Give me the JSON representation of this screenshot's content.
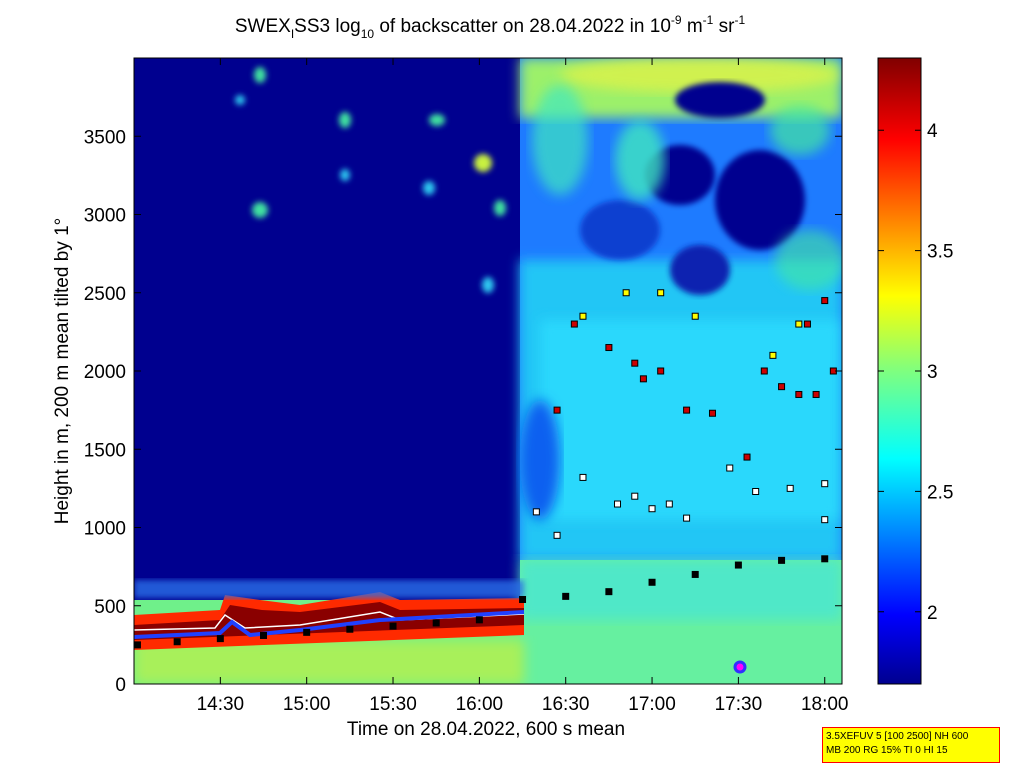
{
  "chart_data": {
    "type": "heatmap",
    "title_parts": {
      "t1": "SWEX",
      "t1_sub": "I",
      "t2": "SS3 log",
      "t2_sub": "10",
      "t3": " of backscatter on 28.04.2022 in 10",
      "t3_sup1": "-9",
      "t4": " m",
      "t4_sup": "-1",
      "t5": " sr",
      "t5_sup": "-1"
    },
    "xlabel": "Time on 28.04.2022, 600 s mean",
    "ylabel": "Height in m, 200 m mean tilted by 1°",
    "x_ticks": [
      "14:30",
      "15:00",
      "15:30",
      "16:00",
      "16:30",
      "17:00",
      "17:30",
      "18:00"
    ],
    "y_ticks": [
      "0",
      "500",
      "1000",
      "1500",
      "2000",
      "2500",
      "3000",
      "3500"
    ],
    "y_tick_values": [
      0,
      500,
      1000,
      1500,
      2000,
      2500,
      3000,
      3500
    ],
    "ylim": [
      0,
      4000
    ],
    "colorbar_ticks": [
      "2",
      "2.5",
      "3",
      "3.5",
      "4"
    ],
    "colorbar_tick_values": [
      2,
      2.5,
      3,
      3.5,
      4
    ],
    "colorbar_range": [
      1.7,
      4.3
    ],
    "colormap": "jet",
    "series": [
      {
        "marker": "black squares",
        "points": [
          [
            14.02,
            250
          ],
          [
            14.25,
            270
          ],
          [
            14.5,
            290
          ],
          [
            14.75,
            310
          ],
          [
            15.0,
            330
          ],
          [
            15.25,
            350
          ],
          [
            15.5,
            370
          ],
          [
            15.75,
            390
          ],
          [
            16.0,
            410
          ],
          [
            16.25,
            540
          ],
          [
            16.5,
            560
          ],
          [
            16.75,
            590
          ],
          [
            17.0,
            650
          ],
          [
            17.25,
            700
          ],
          [
            17.5,
            760
          ],
          [
            17.75,
            790
          ],
          [
            18.0,
            800
          ]
        ]
      },
      {
        "marker": "white squares",
        "points": [
          [
            16.33,
            1100
          ],
          [
            16.45,
            950
          ],
          [
            16.6,
            1320
          ],
          [
            16.8,
            1150
          ],
          [
            16.9,
            1200
          ],
          [
            17.0,
            1120
          ],
          [
            17.1,
            1150
          ],
          [
            17.2,
            1060
          ],
          [
            17.45,
            1380
          ],
          [
            17.6,
            1230
          ],
          [
            17.8,
            1250
          ],
          [
            18.0,
            1280
          ],
          [
            18.0,
            1050
          ]
        ]
      },
      {
        "marker": "red squares",
        "points": [
          [
            16.45,
            1750
          ],
          [
            16.55,
            2300
          ],
          [
            16.75,
            2150
          ],
          [
            16.9,
            2050
          ],
          [
            16.95,
            1950
          ],
          [
            17.05,
            2000
          ],
          [
            17.2,
            1750
          ],
          [
            17.35,
            1730
          ],
          [
            17.55,
            1450
          ],
          [
            17.65,
            2000
          ],
          [
            17.75,
            1900
          ],
          [
            17.85,
            1850
          ],
          [
            17.95,
            1850
          ],
          [
            18.05,
            2000
          ],
          [
            17.9,
            2300
          ],
          [
            18.0,
            2450
          ]
        ]
      },
      {
        "marker": "yellow squares",
        "points": [
          [
            16.6,
            2350
          ],
          [
            16.85,
            2500
          ],
          [
            17.05,
            2500
          ],
          [
            17.25,
            2350
          ],
          [
            17.7,
            2100
          ],
          [
            17.85,
            2300
          ]
        ]
      }
    ]
  },
  "footnote": {
    "line1": "3.5XEFUV 5 [100 2500] NH 600",
    "line2": "MB 200 RG 15% TI 0 HI 15"
  },
  "colors": {
    "background": "#000099",
    "accent_red": "#ff0000",
    "accent_yellow": "#ffff00"
  }
}
